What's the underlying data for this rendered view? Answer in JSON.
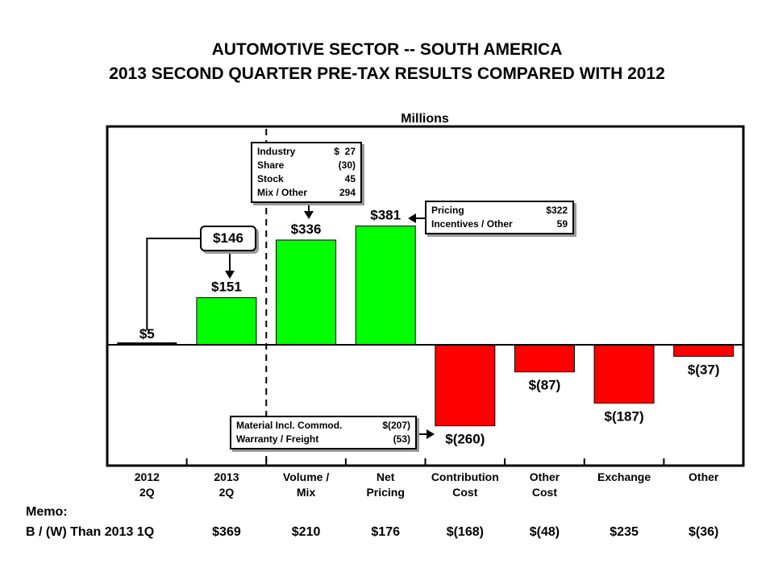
{
  "title": {
    "line1": "AUTOMOTIVE SECTOR -- SOUTH AMERICA",
    "line2": "2013 SECOND QUARTER PRE-TAX RESULTS COMPARED WITH 2012"
  },
  "chart_data": {
    "type": "bar",
    "subtype": "waterfall",
    "unit_label": "Millions",
    "categories": [
      [
        "2012",
        "2Q"
      ],
      [
        "2013",
        "2Q"
      ],
      [
        "Volume /",
        "Mix"
      ],
      [
        "Net",
        "Pricing"
      ],
      [
        "Contribution",
        "Cost"
      ],
      [
        "Other",
        "Cost"
      ],
      [
        "Exchange",
        ""
      ],
      [
        "Other",
        ""
      ]
    ],
    "values": [
      5,
      151,
      336,
      381,
      -260,
      -87,
      -187,
      -37
    ],
    "value_labels": [
      "$5",
      "$151",
      "$336",
      "$381",
      "$(260)",
      "$(87)",
      "$(187)",
      "$(37)"
    ],
    "colors": [
      "#000000",
      "#00ff00",
      "#00ff00",
      "#00ff00",
      "#ff0000",
      "#ff0000",
      "#ff0000",
      "#ff0000"
    ],
    "ylim": [
      -380,
      635
    ],
    "grid": false,
    "change_callout": "$146",
    "volume_breakdown": [
      {
        "label": "Industry",
        "value": "$  27"
      },
      {
        "label": "Share",
        "value": "(30)"
      },
      {
        "label": "Stock",
        "value": "45"
      },
      {
        "label": "Mix / Other",
        "value": "294"
      }
    ],
    "pricing_breakdown": [
      {
        "label": "Pricing",
        "value": "$322"
      },
      {
        "label": "Incentives / Other",
        "value": "59"
      }
    ],
    "cost_breakdown": [
      {
        "label": "Material Incl. Commod.",
        "value": "$(207)"
      },
      {
        "label": "Warranty / Freight",
        "value": "(53)"
      }
    ]
  },
  "memo": {
    "title": "Memo:",
    "row_label": "B / (W) Than 2013 1Q",
    "values": [
      "$369",
      "$210",
      "$176",
      "$(168)",
      "$(48)",
      "$235",
      "$(36)"
    ]
  }
}
